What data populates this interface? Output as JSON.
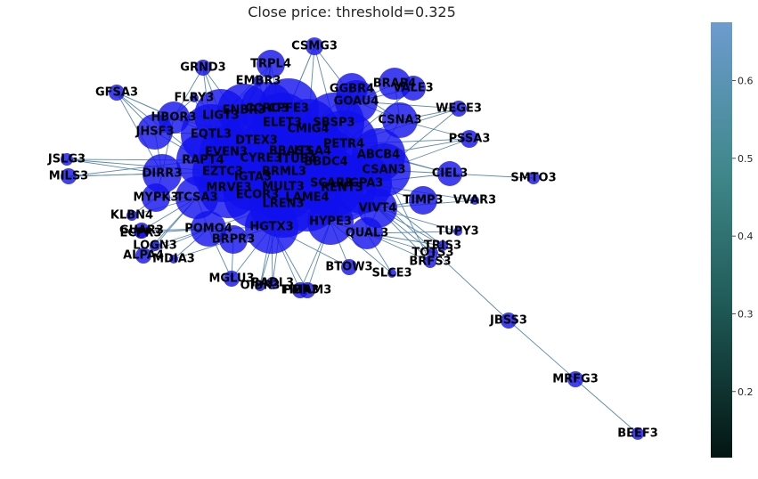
{
  "title": "Close price: threshold=0.325",
  "colorbar": {
    "ticks": [
      "0.2",
      "0.3",
      "0.4",
      "0.5",
      "0.6"
    ],
    "tick_values": [
      0.2,
      0.3,
      0.4,
      0.5,
      0.6
    ],
    "range": [
      0.115,
      0.675
    ],
    "colors": [
      "#031512",
      "#1f5a57",
      "#3f878a",
      "#6c9ccf"
    ]
  },
  "colors": {
    "node": "#1010ee",
    "edge": "#5b89ad"
  },
  "nodes": [
    {
      "label": "CSMG3"
    },
    {
      "label": "TRPL4"
    },
    {
      "label": "GRND3"
    },
    {
      "label": "EMBR3"
    },
    {
      "label": "GFSA3"
    },
    {
      "label": "FLRY3"
    },
    {
      "label": "GGBR4"
    },
    {
      "label": "BRAP4"
    },
    {
      "label": "VALE3"
    },
    {
      "label": "GOAU4"
    },
    {
      "label": "HBOR3"
    },
    {
      "label": "LIGT3"
    },
    {
      "label": "ENBR3"
    },
    {
      "label": "CCRO3"
    },
    {
      "label": "CPFE3"
    },
    {
      "label": "SBSP3"
    },
    {
      "label": "CSNA3"
    },
    {
      "label": "WEGE3"
    },
    {
      "label": "JHSF3"
    },
    {
      "label": "EQTL3"
    },
    {
      "label": "ELET3"
    },
    {
      "label": "CMIG4"
    },
    {
      "label": "DTEX3"
    },
    {
      "label": "PETR4"
    },
    {
      "label": "PSSA3"
    },
    {
      "label": "EVEN3"
    },
    {
      "label": "BBAS3"
    },
    {
      "label": "ITSA4"
    },
    {
      "label": "CYRE3"
    },
    {
      "label": "ITUB4"
    },
    {
      "label": "BBDC4"
    },
    {
      "label": "ABCB4"
    },
    {
      "label": "JSLG3"
    },
    {
      "label": "RAPT4"
    },
    {
      "label": "EZTC3"
    },
    {
      "label": "BRML3"
    },
    {
      "label": "CSAN3"
    },
    {
      "label": "CIEL3"
    },
    {
      "label": "SMTO3"
    },
    {
      "label": "MILS3"
    },
    {
      "label": "DIRR3"
    },
    {
      "label": "MRVE3"
    },
    {
      "label": "IGTA3"
    },
    {
      "label": "MULT3"
    },
    {
      "label": "SCAR3"
    },
    {
      "label": "RENT3"
    },
    {
      "label": "UGPA3"
    },
    {
      "label": "MYPK3"
    },
    {
      "label": "TCSA3"
    },
    {
      "label": "ECOR3"
    },
    {
      "label": "LAME4"
    },
    {
      "label": "TIMP3"
    },
    {
      "label": "VVAR3"
    },
    {
      "label": "LREN3"
    },
    {
      "label": "KLBN4"
    },
    {
      "label": "VIVT4"
    },
    {
      "label": "GUAR3"
    },
    {
      "label": "POMO4"
    },
    {
      "label": "HYPE3"
    },
    {
      "label": "ECPR3"
    },
    {
      "label": "HGTX3"
    },
    {
      "label": "TUPY3"
    },
    {
      "label": "QUAL3"
    },
    {
      "label": "BRPR3"
    },
    {
      "label": "LOGN3"
    },
    {
      "label": "TRIS3"
    },
    {
      "label": "TOTS3"
    },
    {
      "label": "ALPA4"
    },
    {
      "label": "MDIA3"
    },
    {
      "label": "BRFS3"
    },
    {
      "label": "BTOW3"
    },
    {
      "label": "SLCE3"
    },
    {
      "label": "MGLU3"
    },
    {
      "label": "RADL3"
    },
    {
      "label": "OIBR3"
    },
    {
      "label": "PMAM3"
    },
    {
      "label": "FIBR3"
    },
    {
      "label": "JBSS3"
    },
    {
      "label": "MRFG3"
    },
    {
      "label": "BEEF3"
    }
  ]
}
